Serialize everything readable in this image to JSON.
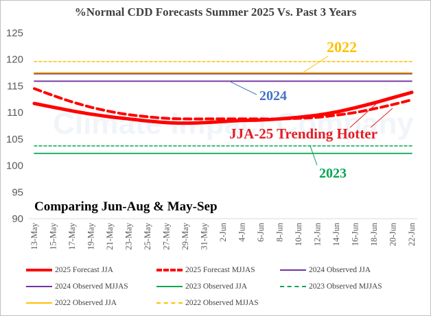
{
  "chart_data": {
    "type": "line",
    "title": "%Normal CDD Forecasts Summer 2025 Vs. Past 3 Years",
    "ylim": [
      90,
      125
    ],
    "yticks": [
      90,
      95,
      100,
      105,
      110,
      115,
      120,
      125
    ],
    "x": [
      "13-May",
      "15-May",
      "17-May",
      "19-May",
      "21-May",
      "23-May",
      "25-May",
      "27-May",
      "29-May",
      "31-May",
      "2-Jun",
      "4-Jun",
      "6-Jun",
      "8-Jun",
      "10-Jun",
      "12-Jun",
      "14-Jun",
      "16-Jun",
      "18-Jun",
      "20-Jun",
      "22-Jun"
    ],
    "series": [
      {
        "name": "2025 Forecast JJA",
        "color": "#ff0000",
        "style": "solid-thick",
        "values": [
          111.7,
          111.0,
          110.3,
          109.7,
          109.2,
          108.8,
          108.4,
          108.1,
          108.0,
          108.1,
          108.3,
          108.5,
          108.6,
          108.8,
          109.1,
          109.5,
          110.1,
          110.9,
          111.8,
          112.8,
          113.8
        ]
      },
      {
        "name": "2025 Forecast MJJAS",
        "color": "#ff0000",
        "style": "dashed-thick",
        "values": [
          114.5,
          113.2,
          112.0,
          111.0,
          110.2,
          109.6,
          109.2,
          108.9,
          108.8,
          108.8,
          108.8,
          108.8,
          108.8,
          108.8,
          108.9,
          109.1,
          109.5,
          110.0,
          110.7,
          111.5,
          112.4
        ]
      },
      {
        "name": "2024 Observed JJA",
        "color": "#7030a0",
        "style": "solid",
        "values": [
          117.3,
          117.3,
          117.3,
          117.3,
          117.3,
          117.3,
          117.3,
          117.3,
          117.3,
          117.3,
          117.3,
          117.3,
          117.3,
          117.3,
          117.3,
          117.3,
          117.3,
          117.3,
          117.3,
          117.3,
          117.3
        ]
      },
      {
        "name": "2024 Observed MJJAS",
        "color": "#7030a0",
        "style": "solid",
        "values": [
          115.9,
          115.9,
          115.9,
          115.9,
          115.9,
          115.9,
          115.9,
          115.9,
          115.9,
          115.9,
          115.9,
          115.9,
          115.9,
          115.9,
          115.9,
          115.9,
          115.9,
          115.9,
          115.9,
          115.9,
          115.9
        ]
      },
      {
        "name": "2023 Observed JJA",
        "color": "#00a651",
        "style": "solid",
        "values": [
          102.3,
          102.3,
          102.3,
          102.3,
          102.3,
          102.3,
          102.3,
          102.3,
          102.3,
          102.3,
          102.3,
          102.3,
          102.3,
          102.3,
          102.3,
          102.3,
          102.3,
          102.3,
          102.3,
          102.3,
          102.3
        ]
      },
      {
        "name": "2023 Observed MJJAS",
        "color": "#00a651",
        "style": "dashed",
        "values": [
          103.7,
          103.7,
          103.7,
          103.7,
          103.7,
          103.7,
          103.7,
          103.7,
          103.7,
          103.7,
          103.7,
          103.7,
          103.7,
          103.7,
          103.7,
          103.7,
          103.7,
          103.7,
          103.7,
          103.7,
          103.7
        ]
      },
      {
        "name": "2022 Observed JJA",
        "color": "#ffc000",
        "style": "solid",
        "values": [
          117.5,
          117.5,
          117.5,
          117.5,
          117.5,
          117.5,
          117.5,
          117.5,
          117.5,
          117.5,
          117.5,
          117.5,
          117.5,
          117.5,
          117.5,
          117.5,
          117.5,
          117.5,
          117.5,
          117.5,
          117.5
        ]
      },
      {
        "name": "2022 Observed MJJAS",
        "color": "#ffc000",
        "style": "dashed",
        "values": [
          119.6,
          119.6,
          119.6,
          119.6,
          119.6,
          119.6,
          119.6,
          119.6,
          119.6,
          119.6,
          119.6,
          119.6,
          119.6,
          119.6,
          119.6,
          119.6,
          119.6,
          119.6,
          119.6,
          119.6,
          119.6
        ]
      }
    ],
    "annotations": [
      {
        "text": "2022",
        "color": "#ffc000"
      },
      {
        "text": "2024",
        "color": "#4472c4"
      },
      {
        "text": "JJA-25 Trending Hotter",
        "color": "#e31c23"
      },
      {
        "text": "2023",
        "color": "#00a651"
      },
      {
        "text": "Comparing Jun-Aug & May-Sep",
        "color": "#000000"
      }
    ],
    "watermark": "Climate Impact Company",
    "legend_position": "bottom",
    "grid": false
  }
}
